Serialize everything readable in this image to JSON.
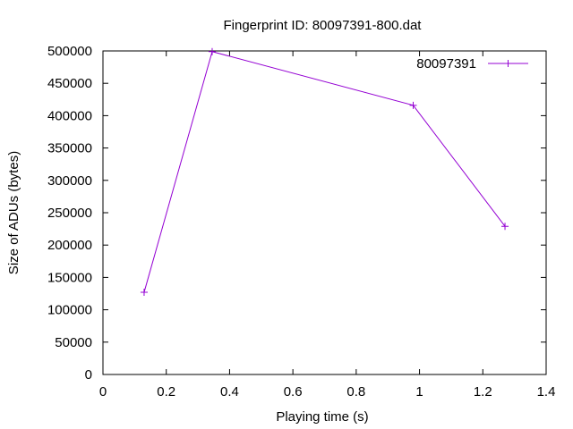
{
  "chart_data": {
    "type": "line",
    "title": "Fingerprint ID: 80097391-800.dat",
    "xlabel": "Playing time (s)",
    "ylabel": "Size of ADUs (bytes)",
    "xlim": [
      0,
      1.4
    ],
    "ylim": [
      0,
      500000
    ],
    "xticks": [
      0,
      0.2,
      0.4,
      0.6,
      0.8,
      1,
      1.2,
      1.4
    ],
    "xtick_labels": [
      "0",
      "0.2",
      "0.4",
      "0.6",
      "0.8",
      "1",
      "1.2",
      "1.4"
    ],
    "yticks": [
      0,
      50000,
      100000,
      150000,
      200000,
      250000,
      300000,
      350000,
      400000,
      450000,
      500000
    ],
    "ytick_labels": [
      "0",
      "50000",
      "100000",
      "150000",
      "200000",
      "250000",
      "300000",
      "350000",
      "400000",
      "450000",
      "500000"
    ],
    "grid": false,
    "legend_position": "top-right",
    "series": [
      {
        "name": "80097391",
        "color": "#9400d3",
        "marker": "plus",
        "x": [
          0.13,
          0.345,
          0.98,
          1.27
        ],
        "y": [
          127000,
          499000,
          416000,
          229000
        ]
      }
    ]
  }
}
